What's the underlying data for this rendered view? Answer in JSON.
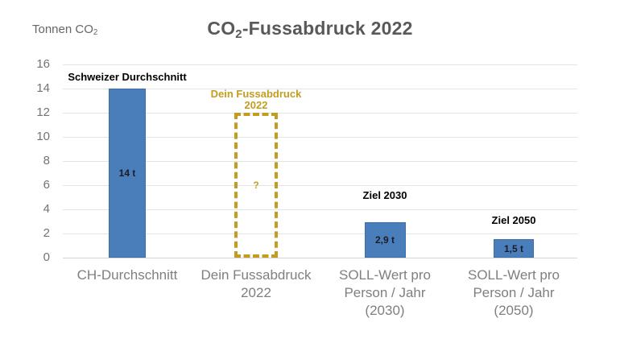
{
  "header": {
    "title_main": "CO",
    "title_sub": "2",
    "title_rest": "-Fussabdruck 2022"
  },
  "axes": {
    "y_title_main": "Tonnen CO",
    "y_title_sub": "2"
  },
  "chart_data": {
    "type": "bar",
    "title": "CO2-Fussabdruck 2022",
    "ylabel": "Tonnen CO2",
    "ylim": [
      0,
      16
    ],
    "ytick_interval": 2,
    "yticks": [
      "16",
      "14",
      "12",
      "10",
      "8",
      "6",
      "4",
      "2",
      "0"
    ],
    "grid": "horizontal light gray",
    "legend": "none",
    "categories": [
      "CH-Durchschnitt",
      "Dein Fussabdruck 2022",
      "SOLL-Wert pro Person / Jahr (2030)",
      "SOLL-Wert pro Person / Jahr (2050)"
    ],
    "bars": [
      {
        "label_lines": [
          "CH-Durchschnitt",
          "",
          ""
        ],
        "value": 14,
        "value_label": "14 t",
        "annotation_lines": [
          "Schweizer Durchschnitt",
          ""
        ],
        "style": "solid"
      },
      {
        "label_lines": [
          "Dein Fussabdruck",
          "2022",
          ""
        ],
        "value": null,
        "drawn_height_units": 12,
        "value_label": "?",
        "annotation_lines": [
          "Dein Fussabdruck",
          "2022"
        ],
        "style": "dashed-outline"
      },
      {
        "label_lines": [
          "SOLL-Wert pro",
          "Person / Jahr",
          "(2030)"
        ],
        "value": 2.9,
        "value_label": "2,9 t",
        "annotation_lines": [
          "Ziel 2030",
          ""
        ],
        "style": "solid"
      },
      {
        "label_lines": [
          "SOLL-Wert pro",
          "Person / Jahr",
          "(2050)"
        ],
        "value": 1.5,
        "value_label": "1,5 t",
        "annotation_lines": [
          "Ziel 2050",
          ""
        ],
        "style": "solid"
      }
    ],
    "colors": {
      "bar_fill": "#4A7EBB",
      "bar_border": "#3D6FA8",
      "accent_gold": "#C49C20",
      "title_text": "#595959",
      "axis_text": "#7F7F7F",
      "grid_line": "#E4E4E4",
      "annotation_text": "#000000",
      "bar_value_text": "#1B1B28"
    }
  }
}
